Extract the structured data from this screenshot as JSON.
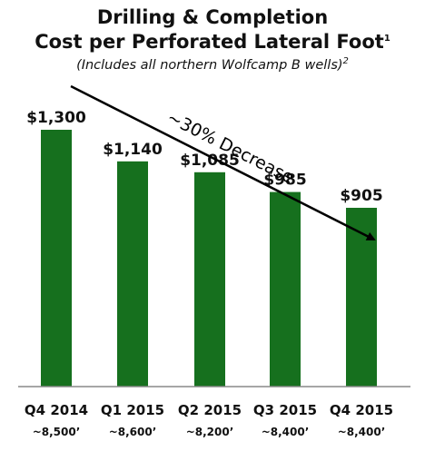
{
  "header": {
    "title_line1": "Drilling & Completion",
    "title_line2": "Cost per Perforated Lateral Foot",
    "title_sup": "1",
    "subtitle": "(Includes all northern Wolfcamp B wells)",
    "subtitle_sup": "2"
  },
  "chart_data": {
    "type": "bar",
    "categories": [
      "Q4 2014",
      "Q1 2015",
      "Q2 2015",
      "Q3 2015",
      "Q4 2015"
    ],
    "sublabels": [
      "~8,500’",
      "~8,600’",
      "~8,200’",
      "~8,400’",
      "~8,400’"
    ],
    "values": [
      1300,
      1140,
      1085,
      985,
      905
    ],
    "data_labels": [
      "$1,300",
      "$1,140",
      "$1,085",
      "$985",
      "$905"
    ],
    "annotation": "~30% Decrease",
    "bar_color": "#16701e",
    "axis_color": "#888888",
    "text_color": "#111111",
    "ylim": [
      0,
      1300
    ],
    "grid": false,
    "legend": "none"
  }
}
